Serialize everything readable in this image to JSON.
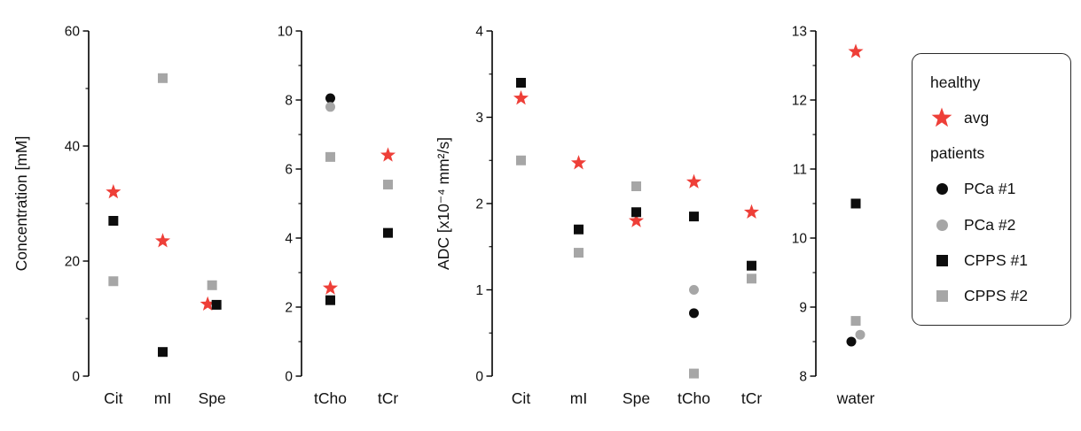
{
  "figure": {
    "background": "#ffffff"
  },
  "colors": {
    "healthy_avg": "#ee3f38",
    "patient_black": "#0d0d0d",
    "patient_gray": "#a6a6a6",
    "axis": "#000000"
  },
  "legend": {
    "healthy_title": "healthy",
    "avg_label": "avg",
    "patients_title": "patients",
    "patients": [
      {
        "label": "PCa #1",
        "marker": "circle",
        "color": "black"
      },
      {
        "label": "PCa #2",
        "marker": "circle",
        "color": "gray"
      },
      {
        "label": "CPPS #1",
        "marker": "square",
        "color": "black"
      },
      {
        "label": "CPPS #2",
        "marker": "square",
        "color": "gray"
      }
    ]
  },
  "chart_data": [
    {
      "id": "concentration",
      "type": "scatter",
      "title": "",
      "ylabel": "Concentration [mM]",
      "xlabel": "",
      "ylim": [
        0,
        60
      ],
      "ytick_step": 20,
      "minor_step": 10,
      "grid": false,
      "categories": [
        "Cit",
        "mI",
        "Spe"
      ],
      "series": [
        {
          "name": "healthy avg",
          "marker": "star",
          "color": "red",
          "values": [
            32,
            23.5,
            12.5
          ]
        },
        {
          "name": "PCa #1",
          "marker": "circle",
          "color": "black",
          "values": [
            null,
            null,
            null
          ]
        },
        {
          "name": "PCa #2",
          "marker": "circle",
          "color": "gray",
          "values": [
            null,
            null,
            null
          ]
        },
        {
          "name": "CPPS #1",
          "marker": "square",
          "color": "black",
          "values": [
            27,
            4.2,
            12.4
          ]
        },
        {
          "name": "CPPS #2",
          "marker": "square",
          "color": "gray",
          "values": [
            16.5,
            51.8,
            15.8
          ]
        }
      ]
    },
    {
      "id": "concentration-small",
      "type": "scatter",
      "title": "",
      "ylabel": "",
      "xlabel": "",
      "ylim": [
        0,
        10
      ],
      "ytick_step": 2,
      "minor_step": 1,
      "grid": false,
      "categories": [
        "tCho",
        "tCr"
      ],
      "series": [
        {
          "name": "healthy avg",
          "marker": "star",
          "color": "red",
          "values": [
            2.55,
            6.4
          ]
        },
        {
          "name": "PCa #1",
          "marker": "circle",
          "color": "black",
          "values": [
            8.05,
            null
          ]
        },
        {
          "name": "PCa #2",
          "marker": "circle",
          "color": "gray",
          "values": [
            7.8,
            null
          ]
        },
        {
          "name": "CPPS #1",
          "marker": "square",
          "color": "black",
          "values": [
            2.2,
            4.15
          ]
        },
        {
          "name": "CPPS #2",
          "marker": "square",
          "color": "gray",
          "values": [
            6.35,
            5.55
          ]
        }
      ]
    },
    {
      "id": "adc",
      "type": "scatter",
      "title": "",
      "ylabel": "ADC [x10⁻⁴ mm²/s]",
      "xlabel": "",
      "ylim": [
        0,
        4
      ],
      "ytick_step": 1,
      "minor_step": 0.5,
      "grid": false,
      "categories": [
        "Cit",
        "mI",
        "Spe",
        "tCho",
        "tCr"
      ],
      "series": [
        {
          "name": "healthy avg",
          "marker": "star",
          "color": "red",
          "values": [
            3.22,
            2.47,
            1.8,
            2.25,
            1.9
          ]
        },
        {
          "name": "PCa #1",
          "marker": "circle",
          "color": "black",
          "values": [
            null,
            null,
            null,
            0.73,
            null
          ]
        },
        {
          "name": "PCa #2",
          "marker": "circle",
          "color": "gray",
          "values": [
            null,
            null,
            null,
            1.0,
            null
          ]
        },
        {
          "name": "CPPS #1",
          "marker": "square",
          "color": "black",
          "values": [
            3.4,
            1.7,
            1.9,
            1.85,
            1.28
          ]
        },
        {
          "name": "CPPS #2",
          "marker": "square",
          "color": "gray",
          "values": [
            2.5,
            1.43,
            2.2,
            0.03,
            1.13
          ]
        }
      ]
    },
    {
      "id": "adc-water",
      "type": "scatter",
      "title": "",
      "ylabel": "",
      "xlabel": "",
      "ylim": [
        8,
        13
      ],
      "ytick_step": 1,
      "minor_step": 0.5,
      "grid": false,
      "categories": [
        "water"
      ],
      "series": [
        {
          "name": "healthy avg",
          "marker": "star",
          "color": "red",
          "values": [
            12.7
          ]
        },
        {
          "name": "PCa #1",
          "marker": "circle",
          "color": "black",
          "values": [
            8.5
          ]
        },
        {
          "name": "PCa #2",
          "marker": "circle",
          "color": "gray",
          "values": [
            8.6
          ]
        },
        {
          "name": "CPPS #1",
          "marker": "square",
          "color": "black",
          "values": [
            10.5
          ]
        },
        {
          "name": "CPPS #2",
          "marker": "square",
          "color": "gray",
          "values": [
            8.8
          ]
        }
      ]
    }
  ]
}
